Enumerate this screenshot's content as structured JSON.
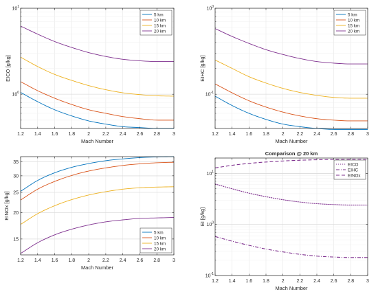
{
  "chart_data": [
    {
      "type": "line",
      "title": "",
      "xlabel": "Mach Number",
      "ylabel": "EICO [g/kg]",
      "yscale": "log",
      "xlim": [
        1.2,
        3
      ],
      "ylim": [
        0.4,
        10
      ],
      "xticks": [
        "1.2",
        "1.4",
        "1.6",
        "1.8",
        "2",
        "2.2",
        "2.4",
        "2.6",
        "2.8",
        "3"
      ],
      "yticks": [
        {
          "value": 1,
          "label": "10",
          "exp": "0"
        },
        {
          "value": 10,
          "label": "10",
          "exp": "1"
        }
      ],
      "grid": true,
      "legend_position": "top-right",
      "x": [
        1.2,
        1.4,
        1.6,
        1.8,
        2.0,
        2.2,
        2.4,
        2.6,
        2.8,
        3.0
      ],
      "series": [
        {
          "name": "5 km",
          "color": "#0072BD",
          "style": "solid",
          "values": [
            1.05,
            0.82,
            0.66,
            0.56,
            0.49,
            0.45,
            0.42,
            0.41,
            0.4,
            0.4
          ]
        },
        {
          "name": "10 km",
          "color": "#D95319",
          "style": "solid",
          "values": [
            1.4,
            1.1,
            0.9,
            0.76,
            0.66,
            0.6,
            0.55,
            0.52,
            0.5,
            0.5
          ]
        },
        {
          "name": "15 km",
          "color": "#EDB120",
          "style": "solid",
          "values": [
            2.7,
            2.1,
            1.7,
            1.45,
            1.26,
            1.13,
            1.04,
            0.99,
            0.96,
            0.95
          ]
        },
        {
          "name": "20 km",
          "color": "#7E2F8E",
          "style": "solid",
          "values": [
            6.2,
            5.0,
            4.1,
            3.5,
            3.05,
            2.75,
            2.55,
            2.45,
            2.4,
            2.4
          ]
        }
      ]
    },
    {
      "type": "line",
      "title": "",
      "xlabel": "Mach Number",
      "ylabel": "EIHC [g/kg]",
      "yscale": "log",
      "xlim": [
        1.2,
        3
      ],
      "ylim": [
        0.04,
        1
      ],
      "xticks": [
        "1.2",
        "1.4",
        "1.6",
        "1.8",
        "2",
        "2.2",
        "2.4",
        "2.6",
        "2.8",
        "3"
      ],
      "yticks": [
        {
          "value": 0.1,
          "label": "10",
          "exp": "-1"
        },
        {
          "value": 1,
          "label": "10",
          "exp": "0"
        }
      ],
      "grid": true,
      "legend_position": "top-right",
      "x": [
        1.2,
        1.4,
        1.6,
        1.8,
        2.0,
        2.2,
        2.4,
        2.6,
        2.8,
        3.0
      ],
      "series": [
        {
          "name": "5 km",
          "color": "#0072BD",
          "style": "solid",
          "values": [
            0.095,
            0.074,
            0.06,
            0.051,
            0.045,
            0.042,
            0.04,
            0.039,
            0.039,
            0.039
          ]
        },
        {
          "name": "10 km",
          "color": "#D95319",
          "style": "solid",
          "values": [
            0.132,
            0.104,
            0.084,
            0.071,
            0.062,
            0.056,
            0.052,
            0.05,
            0.049,
            0.049
          ]
        },
        {
          "name": "15 km",
          "color": "#EDB120",
          "style": "solid",
          "values": [
            0.25,
            0.2,
            0.16,
            0.135,
            0.117,
            0.105,
            0.097,
            0.092,
            0.09,
            0.09
          ]
        },
        {
          "name": "20 km",
          "color": "#7E2F8E",
          "style": "solid",
          "values": [
            0.58,
            0.47,
            0.39,
            0.33,
            0.29,
            0.26,
            0.24,
            0.23,
            0.225,
            0.225
          ]
        }
      ]
    },
    {
      "type": "line",
      "title": "",
      "xlabel": "Mach Number",
      "ylabel": "EINOx [g/kg]",
      "yscale": "log",
      "xlim": [
        1.2,
        3
      ],
      "ylim": [
        12.6,
        37
      ],
      "xticks": [
        "1.2",
        "1.4",
        "1.6",
        "1.8",
        "2",
        "2.2",
        "2.4",
        "2.6",
        "2.8",
        "3"
      ],
      "yticks": [
        {
          "value": 15,
          "label": "15"
        },
        {
          "value": 20,
          "label": "20"
        },
        {
          "value": 25,
          "label": "25"
        },
        {
          "value": 30,
          "label": "30"
        },
        {
          "value": 35,
          "label": "35"
        }
      ],
      "grid": true,
      "legend_position": "bottom-right",
      "x": [
        1.2,
        1.4,
        1.6,
        1.8,
        2.0,
        2.2,
        2.4,
        2.6,
        2.8,
        3.0
      ],
      "series": [
        {
          "name": "5 km",
          "color": "#0072BD",
          "style": "solid",
          "values": [
            25.3,
            28.5,
            31.0,
            32.9,
            34.3,
            35.4,
            36.1,
            36.6,
            36.9,
            37.0
          ]
        },
        {
          "name": "10 km",
          "color": "#D95319",
          "style": "solid",
          "values": [
            23.0,
            25.9,
            28.2,
            30.1,
            31.6,
            32.7,
            33.6,
            34.2,
            34.6,
            34.8
          ]
        },
        {
          "name": "15 km",
          "color": "#EDB120",
          "style": "solid",
          "values": [
            17.6,
            19.8,
            21.6,
            23.1,
            24.3,
            25.2,
            25.9,
            26.3,
            26.5,
            26.6
          ]
        },
        {
          "name": "20 km",
          "color": "#7E2F8E",
          "style": "solid",
          "values": [
            12.8,
            14.4,
            15.7,
            16.7,
            17.5,
            18.1,
            18.5,
            18.8,
            18.9,
            19.0
          ]
        }
      ]
    },
    {
      "type": "line",
      "title": "Comparison @ 20 km",
      "xlabel": "Mach Number",
      "ylabel": "EI [g/kg]",
      "yscale": "log",
      "xlim": [
        1.2,
        3
      ],
      "ylim": [
        0.1,
        20
      ],
      "xticks": [
        "1.2",
        "1.4",
        "1.6",
        "1.8",
        "2",
        "2.2",
        "2.4",
        "2.6",
        "2.8",
        "3"
      ],
      "yticks": [
        {
          "value": 0.1,
          "label": "10",
          "exp": "-1"
        },
        {
          "value": 1,
          "label": "10",
          "exp": "0"
        },
        {
          "value": 10,
          "label": "10",
          "exp": "1"
        }
      ],
      "grid": true,
      "legend_position": "top-right",
      "x": [
        1.2,
        1.4,
        1.6,
        1.8,
        2.0,
        2.2,
        2.4,
        2.6,
        2.8,
        3.0
      ],
      "series": [
        {
          "name": "EICO",
          "color": "#7E2F8E",
          "style": "dotted",
          "values": [
            6.2,
            5.0,
            4.1,
            3.5,
            3.05,
            2.75,
            2.55,
            2.45,
            2.4,
            2.4
          ]
        },
        {
          "name": "EIHC",
          "color": "#7E2F8E",
          "style": "dashdot",
          "values": [
            0.58,
            0.47,
            0.39,
            0.33,
            0.29,
            0.26,
            0.24,
            0.23,
            0.225,
            0.225
          ]
        },
        {
          "name": "EINOx",
          "color": "#7E2F8E",
          "style": "dashed",
          "values": [
            12.8,
            14.4,
            15.7,
            16.7,
            17.5,
            18.1,
            18.5,
            18.8,
            18.9,
            19.0
          ]
        }
      ]
    }
  ]
}
